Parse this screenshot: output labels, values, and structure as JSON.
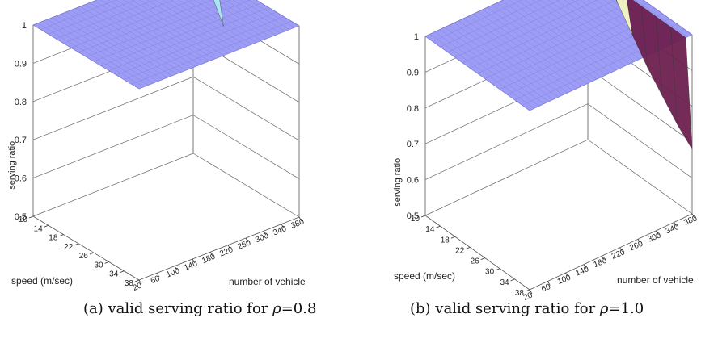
{
  "chart_data": [
    {
      "type": "surface3d",
      "caption_prefix": "(a) valid serving ratio for ",
      "caption_symbol": "ρ",
      "caption_suffix": "=0.8",
      "zlabel": "serving ratio",
      "ylabel": "speed (m/sec)",
      "xlabel": "number of vehicle",
      "zlim": [
        0.5,
        1
      ],
      "zticks": [
        "0.5",
        "0.6",
        "0.7",
        "0.8",
        "0.9",
        "1"
      ],
      "speed_ticks": [
        "10",
        "14",
        "18",
        "22",
        "26",
        "30",
        "34",
        "38"
      ],
      "vehicle_ticks": [
        "20",
        "60",
        "100",
        "140",
        "180",
        "220",
        "260",
        "300",
        "340",
        "380"
      ],
      "surface_color": "#9d9df5",
      "drop": {
        "speed": [
          10,
          14,
          18
        ],
        "vehicle": 380,
        "values": [
          1.0,
          0.96,
          0.88
        ],
        "colors": [
          "#5b0c57",
          "#a9e9f0"
        ]
      }
    },
    {
      "type": "surface3d",
      "caption_prefix": "(b) valid serving ratio for ",
      "caption_symbol": "ρ",
      "caption_suffix": "=1.0",
      "zlabel": "serving ratio",
      "ylabel": "speed (m/sec)",
      "xlabel": "number of vehicle",
      "zlim": [
        0.5,
        1
      ],
      "zticks": [
        "0.5",
        "0.6",
        "0.7",
        "0.8",
        "0.9",
        "1"
      ],
      "speed_ticks": [
        "10",
        "14",
        "18",
        "22",
        "26",
        "30",
        "34",
        "38"
      ],
      "vehicle_ticks": [
        "20",
        "60",
        "100",
        "140",
        "180",
        "220",
        "260",
        "300",
        "340",
        "380"
      ],
      "surface_color": "#9d9df5",
      "drop": {
        "speed": [
          10,
          14,
          18,
          22,
          26,
          30,
          34,
          38
        ],
        "vehicle": 380,
        "values": [
          1.0,
          0.99,
          0.94,
          0.88,
          0.82,
          0.77,
          0.72,
          0.68
        ],
        "colors": [
          "#5b0c57",
          "#a9e9f0",
          "#f5f5c3",
          "#6e2050"
        ]
      }
    }
  ]
}
